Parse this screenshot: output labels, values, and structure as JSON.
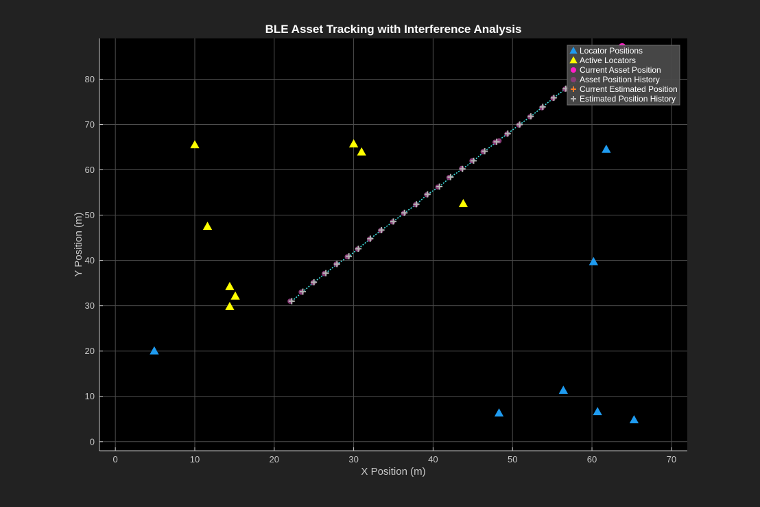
{
  "chart_data": {
    "type": "scatter",
    "title": "BLE Asset Tracking with Interference Analysis",
    "xlabel": "X Position (m)",
    "ylabel": "Y Position (m)",
    "xlim": [
      -2,
      72
    ],
    "ylim": [
      -2,
      89
    ],
    "xticks": [
      0,
      10,
      20,
      30,
      40,
      50,
      60,
      70
    ],
    "yticks": [
      0,
      10,
      20,
      30,
      40,
      50,
      60,
      70,
      80
    ],
    "grid": true,
    "legend_position": "top-right",
    "colors": {
      "background": "#222222",
      "plot_background": "#000000",
      "grid": "#4d4d4d",
      "axis": "#c8c8c8",
      "locator": "#1f9bf0",
      "active_locator": "#ffff00",
      "current_asset": "#ff1ec8",
      "asset_history": "#8a3c78",
      "current_estimate": "#ff7f2a",
      "estimate_history": "#b4b4b4",
      "trajectory_line": "#40e0e0",
      "legend_background": "#4a4a4a"
    },
    "series": [
      {
        "name": "Locator Positions",
        "marker": "triangle",
        "points": [
          [
            4.9,
            20
          ],
          [
            61.8,
            64.5
          ],
          [
            60.2,
            39.7
          ],
          [
            56.4,
            11.3
          ],
          [
            48.3,
            6.3
          ],
          [
            60.7,
            6.6
          ],
          [
            65.3,
            4.8
          ]
        ]
      },
      {
        "name": "Active Locators",
        "marker": "triangle",
        "points": [
          [
            10.0,
            65.5
          ],
          [
            11.6,
            47.5
          ],
          [
            14.4,
            34.2
          ],
          [
            15.1,
            32.1
          ],
          [
            14.4,
            29.8
          ],
          [
            30.0,
            65.7
          ],
          [
            31.0,
            63.9
          ],
          [
            43.8,
            52.5
          ]
        ]
      },
      {
        "name": "Current Asset Position",
        "marker": "circle",
        "points": [
          [
            63.8,
            87.1
          ]
        ]
      },
      {
        "name": "Asset Position History",
        "marker": "circle",
        "points": [
          [
            22.0,
            31.0
          ],
          [
            23.4,
            33.0
          ],
          [
            24.9,
            35.1
          ],
          [
            26.3,
            37.1
          ],
          [
            27.8,
            39.2
          ],
          [
            29.2,
            40.8
          ],
          [
            30.5,
            42.5
          ],
          [
            32.0,
            44.7
          ],
          [
            33.4,
            46.6
          ],
          [
            34.9,
            48.5
          ],
          [
            36.3,
            50.4
          ],
          [
            37.8,
            52.3
          ],
          [
            39.2,
            54.5
          ],
          [
            40.6,
            56.2
          ],
          [
            42.0,
            58.3
          ],
          [
            43.6,
            60.3
          ],
          [
            44.9,
            62.0
          ],
          [
            46.3,
            64.0
          ],
          [
            47.8,
            66.1
          ],
          [
            48.3,
            66.4
          ],
          [
            49.3,
            67.9
          ],
          [
            50.8,
            69.9
          ],
          [
            52.2,
            71.7
          ],
          [
            53.7,
            73.7
          ],
          [
            55.1,
            75.8
          ],
          [
            56.6,
            77.8
          ]
        ]
      },
      {
        "name": "Current Estimated Position",
        "marker": "plus",
        "points": []
      },
      {
        "name": "Estimated Position History",
        "marker": "plus",
        "points": [
          [
            22.2,
            31.0
          ],
          [
            23.6,
            33.1
          ],
          [
            25.0,
            35.2
          ],
          [
            26.5,
            37.2
          ],
          [
            27.9,
            39.2
          ],
          [
            29.4,
            40.9
          ],
          [
            30.6,
            42.6
          ],
          [
            32.1,
            44.8
          ],
          [
            33.5,
            46.7
          ],
          [
            35.0,
            48.6
          ],
          [
            36.4,
            50.5
          ],
          [
            37.9,
            52.4
          ],
          [
            39.3,
            54.6
          ],
          [
            40.8,
            56.3
          ],
          [
            42.2,
            58.4
          ],
          [
            43.7,
            60.2
          ],
          [
            45.1,
            62.0
          ],
          [
            46.5,
            64.1
          ],
          [
            48.0,
            66.2
          ],
          [
            49.4,
            68.0
          ],
          [
            50.9,
            70.0
          ],
          [
            52.3,
            71.8
          ],
          [
            53.8,
            73.9
          ],
          [
            55.2,
            75.9
          ],
          [
            56.7,
            77.9
          ]
        ]
      }
    ],
    "trajectory": [
      [
        22.2,
        31.0
      ],
      [
        23.6,
        33.1
      ],
      [
        25.0,
        35.2
      ],
      [
        26.5,
        37.2
      ],
      [
        27.9,
        39.2
      ],
      [
        29.4,
        40.9
      ],
      [
        30.6,
        42.6
      ],
      [
        32.1,
        44.8
      ],
      [
        33.5,
        46.7
      ],
      [
        35.0,
        48.6
      ],
      [
        36.4,
        50.5
      ],
      [
        37.9,
        52.4
      ],
      [
        39.3,
        54.6
      ],
      [
        40.8,
        56.3
      ],
      [
        42.2,
        58.4
      ],
      [
        43.7,
        60.2
      ],
      [
        45.1,
        62.0
      ],
      [
        46.5,
        64.1
      ],
      [
        48.0,
        66.2
      ],
      [
        49.4,
        68.0
      ],
      [
        50.9,
        70.0
      ],
      [
        52.3,
        71.8
      ],
      [
        53.8,
        73.9
      ],
      [
        55.2,
        75.9
      ],
      [
        56.7,
        77.9
      ],
      [
        58.2,
        79.6
      ]
    ],
    "legend": [
      {
        "label": "Locator Positions",
        "marker": "triangle",
        "color_key": "locator"
      },
      {
        "label": "Active Locators",
        "marker": "triangle",
        "color_key": "active_locator"
      },
      {
        "label": "Current Asset Position",
        "marker": "circle",
        "color_key": "current_asset"
      },
      {
        "label": "Asset Position History",
        "marker": "circle",
        "color_key": "asset_history"
      },
      {
        "label": "Current Estimated Position",
        "marker": "plus",
        "color_key": "current_estimate"
      },
      {
        "label": "Estimated Position History",
        "marker": "plus",
        "color_key": "estimate_history"
      }
    ]
  }
}
